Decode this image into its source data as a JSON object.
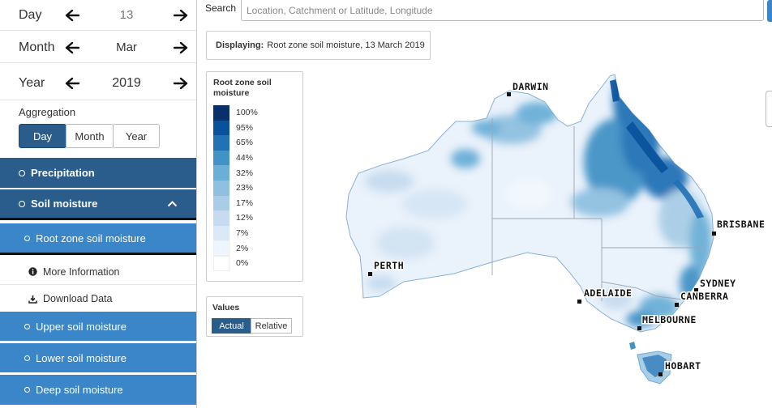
{
  "date": {
    "day": {
      "label": "Day",
      "value": "13"
    },
    "month": {
      "label": "Month",
      "value": "Mar"
    },
    "year": {
      "label": "Year",
      "value": "2019"
    }
  },
  "aggregation": {
    "label": "Aggregation",
    "options": [
      "Day",
      "Month",
      "Year"
    ],
    "selected": "Day"
  },
  "menu": {
    "precipitation": "Precipitation",
    "soil_moisture": "Soil moisture",
    "root_zone": "Root zone soil moisture",
    "more_info": "More Information",
    "download": "Download Data",
    "upper": "Upper soil moisture",
    "lower": "Lower soil moisture",
    "deep": "Deep soil moisture"
  },
  "search": {
    "label": "Search",
    "placeholder": "Location, Catchment or Latitude, Longitude"
  },
  "displaying": {
    "label": "Displaying:",
    "text": "Root zone soil moisture, 13 March 2019"
  },
  "legend": {
    "title": "Root zone soil moisture",
    "items": [
      {
        "label": "100%",
        "color": "#08306b"
      },
      {
        "label": "95%",
        "color": "#08519c"
      },
      {
        "label": "65%",
        "color": "#2171b5"
      },
      {
        "label": "44%",
        "color": "#4292c6"
      },
      {
        "label": "32%",
        "color": "#6baed6"
      },
      {
        "label": "23%",
        "color": "#8fc0e0"
      },
      {
        "label": "17%",
        "color": "#a9cde6"
      },
      {
        "label": "12%",
        "color": "#c6dbef"
      },
      {
        "label": "7%",
        "color": "#dbe9f6"
      },
      {
        "label": "2%",
        "color": "#eef5fc"
      },
      {
        "label": "0%",
        "color": "#ffffff"
      }
    ]
  },
  "values": {
    "title": "Values",
    "options": [
      "Actual",
      "Relative"
    ],
    "selected": "Actual"
  },
  "map": {
    "cities": [
      "DARWIN",
      "BRISBANE",
      "PERTH",
      "SYDNEY",
      "CANBERRA",
      "ADELAIDE",
      "MELBOURNE",
      "HOBART"
    ]
  },
  "colors": {
    "menu_dark": "#2a5d8c",
    "menu_light": "#3a86c8",
    "land_base": "#eaf2fb",
    "wet": "#2171b5"
  }
}
